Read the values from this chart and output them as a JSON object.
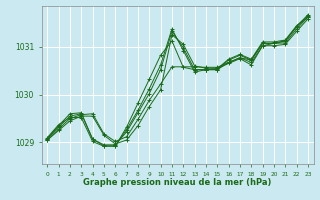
{
  "bg_color": "#cbe9f0",
  "grid_color": "#ffffff",
  "line_color": "#1a6b1a",
  "marker_color": "#1a6b1a",
  "xlabel": "Graphe pression niveau de la mer (hPa)",
  "xlim": [
    -0.5,
    23.5
  ],
  "ylim": [
    1028.55,
    1031.85
  ],
  "yticks": [
    1029,
    1030,
    1031
  ],
  "xticks": [
    0,
    1,
    2,
    3,
    4,
    5,
    6,
    7,
    8,
    9,
    10,
    11,
    12,
    13,
    14,
    15,
    16,
    17,
    18,
    19,
    20,
    21,
    22,
    23
  ],
  "series": [
    [
      1029.05,
      1029.25,
      1029.45,
      1029.55,
      1029.55,
      1029.15,
      1028.97,
      1029.05,
      1029.35,
      1029.75,
      1030.1,
      1031.25,
      1031.05,
      1030.6,
      1030.55,
      1030.55,
      1030.65,
      1030.75,
      1030.62,
      1031.02,
      1031.02,
      1031.05,
      1031.32,
      1031.58
    ],
    [
      1029.05,
      1029.28,
      1029.5,
      1029.58,
      1029.6,
      1029.18,
      1029.02,
      1029.12,
      1029.48,
      1029.88,
      1030.22,
      1030.58,
      1030.58,
      1030.58,
      1030.57,
      1030.57,
      1030.67,
      1030.77,
      1030.72,
      1031.07,
      1031.07,
      1031.08,
      1031.37,
      1031.62
    ],
    [
      1029.08,
      1029.32,
      1029.55,
      1029.6,
      1029.07,
      1028.95,
      1028.95,
      1029.22,
      1029.62,
      1030.02,
      1030.52,
      1031.32,
      1030.98,
      1030.52,
      1030.52,
      1030.52,
      1030.72,
      1030.82,
      1030.72,
      1031.07,
      1031.07,
      1031.12,
      1031.42,
      1031.62
    ],
    [
      1029.08,
      1029.35,
      1029.6,
      1029.62,
      1029.07,
      1028.93,
      1028.93,
      1029.27,
      1029.67,
      1030.12,
      1030.62,
      1031.37,
      1030.92,
      1030.47,
      1030.52,
      1030.54,
      1030.74,
      1030.84,
      1030.74,
      1031.1,
      1031.1,
      1031.14,
      1031.44,
      1031.64
    ],
    [
      1029.1,
      1029.37,
      1029.52,
      1029.52,
      1029.02,
      1028.92,
      1028.92,
      1029.32,
      1029.82,
      1030.32,
      1030.82,
      1031.12,
      1030.57,
      1030.52,
      1030.52,
      1030.52,
      1030.67,
      1030.77,
      1030.67,
      1031.02,
      1031.07,
      1031.12,
      1031.42,
      1031.67
    ]
  ]
}
